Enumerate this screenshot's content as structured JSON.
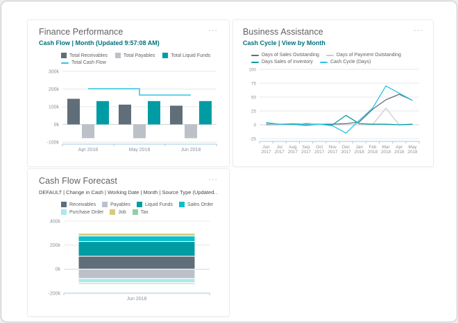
{
  "colors": {
    "accent_subtitle": "#00717b",
    "title": "#606060",
    "menu": "#a9a9a9",
    "legend_text": "#5f5f5f",
    "tick_label": "#8c9196",
    "gridline": "#e7e7e7",
    "zero_line": "#d2d5d8",
    "axis_line": "#9fc9e3",
    "card_border": "#ececec"
  },
  "cards": [
    {
      "key": "finance-performance",
      "title": "Finance Performance",
      "menu_label": "···",
      "subtitle": "Cash Flow | Month (Updated 9:57:08 AM)",
      "legend": [
        {
          "label": "Total Receivables",
          "color": "#5f6e78",
          "shape": "square",
          "row": 0
        },
        {
          "label": "Total Payables",
          "color": "#bcc1c8",
          "shape": "square",
          "row": 0
        },
        {
          "label": "Total Liquid Funds",
          "color": "#009ca4",
          "shape": "square",
          "row": 0
        },
        {
          "label": "Total Cash Flow",
          "color": "#2bc5e3",
          "shape": "line",
          "row": 1
        }
      ]
    },
    {
      "key": "business-assistance",
      "title": "Business Assistance",
      "menu_label": "···",
      "subtitle": "Cash Cycle | View by Month",
      "legend": [
        {
          "label": "Days of Sales Outstanding",
          "color": "#5f6e78",
          "shape": "line",
          "row": 0
        },
        {
          "label": "Days of Payment Outstanding",
          "color": "#c7ccd1",
          "shape": "line",
          "row": 0
        },
        {
          "label": "Days Sales of Inventory",
          "color": "#009ca4",
          "shape": "line",
          "row": 1
        },
        {
          "label": "Cash Cycle (Days)",
          "color": "#2bc5e3",
          "shape": "line",
          "row": 1
        }
      ]
    },
    {
      "key": "cash-flow-forecast",
      "title": "Cash Flow Forecast",
      "menu_label": "···",
      "subtitle": "DEFAULT | Change in Cash | Working Date | Month | Source Type (Updated…",
      "legend": [
        {
          "label": "Receivables",
          "color": "#5f6e78",
          "shape": "square",
          "row": 0
        },
        {
          "label": "Payables",
          "color": "#bcc1c8",
          "shape": "square",
          "row": 0
        },
        {
          "label": "Liquid Funds",
          "color": "#009ca4",
          "shape": "square",
          "row": 0
        },
        {
          "label": "Sales Order",
          "color": "#0bc0cc",
          "shape": "square",
          "row": 0
        },
        {
          "label": "Purchase Order",
          "color": "#abe9ee",
          "shape": "square",
          "row": 1
        },
        {
          "label": "Job",
          "color": "#d8ca7e",
          "shape": "square",
          "row": 1
        },
        {
          "label": "Tax",
          "color": "#8fd0a1",
          "shape": "square",
          "row": 1
        }
      ]
    }
  ],
  "chart_data": [
    {
      "type": "grouped-bar",
      "title": "Cash Flow | Month (Updated 9:57:08 AM)",
      "categories": [
        "Apr 2018",
        "May 2018",
        "Jun 2018"
      ],
      "series": [
        {
          "name": "Total Receivables",
          "color": "#5f6e78",
          "values": [
            145000,
            112000,
            106000
          ]
        },
        {
          "name": "Total Payables",
          "color": "#bcc1c8",
          "values": [
            -78000,
            -78000,
            -78000
          ]
        },
        {
          "name": "Total Liquid Funds",
          "color": "#009ca4",
          "values": [
            132000,
            132000,
            132000
          ]
        }
      ],
      "line_series": [
        {
          "name": "Total Cash Flow",
          "color": "#2bc5e3",
          "step": true,
          "values": [
            202000,
            166000,
            166000
          ]
        }
      ],
      "ylim": [
        -100000,
        300000
      ],
      "yticks": [
        {
          "v": 300000,
          "label": "300k"
        },
        {
          "v": 200000,
          "label": "200k"
        },
        {
          "v": 100000,
          "label": "100k"
        },
        {
          "v": 0,
          "label": "0k"
        },
        {
          "v": -100000,
          "label": "-100k"
        }
      ],
      "xlabel": "",
      "ylabel": "",
      "grid": true,
      "legend_position": "top"
    },
    {
      "type": "line",
      "title": "Cash Cycle | View by Month",
      "categories": [
        "Jun 2017",
        "Jul 2017",
        "Aug 2017",
        "Sep 2017",
        "Oct 2017",
        "Nov 2017",
        "Dec 2017",
        "Jan 2018",
        "Feb 2018",
        "Mar 2018",
        "Apr 2018",
        "May 2018"
      ],
      "series": [
        {
          "name": "Days of Sales Outstanding",
          "color": "#5f6e78",
          "values": [
            0,
            0,
            1,
            2,
            1,
            1,
            2,
            5,
            28,
            45,
            55,
            44
          ]
        },
        {
          "name": "Days of Payment Outstanding",
          "color": "#c7ccd1",
          "values": [
            -1,
            0,
            0,
            3,
            1,
            0,
            0,
            0,
            0,
            30,
            0,
            0
          ]
        },
        {
          "name": "Days Sales of Inventory",
          "color": "#009ca4",
          "values": [
            3,
            1,
            1,
            -1,
            1,
            0,
            17,
            2,
            1,
            1,
            0,
            1
          ]
        },
        {
          "name": "Cash Cycle (Days)",
          "color": "#2bc5e3",
          "values": [
            4,
            1,
            2,
            0,
            1,
            -2,
            -15,
            8,
            30,
            70,
            57,
            44
          ]
        }
      ],
      "ylim": [
        -25,
        100
      ],
      "yticks": [
        {
          "v": 100,
          "label": "100"
        },
        {
          "v": 75,
          "label": "75"
        },
        {
          "v": 50,
          "label": "50"
        },
        {
          "v": 25,
          "label": "25"
        },
        {
          "v": 0,
          "label": "0"
        },
        {
          "v": -25,
          "label": "-25"
        }
      ],
      "xlabel": "",
      "ylabel": "",
      "grid": true,
      "legend_position": "top"
    },
    {
      "type": "stacked-bar",
      "title": "DEFAULT | Change in Cash | Working Date | Month | Source Type",
      "categories": [
        "Jun 2018"
      ],
      "series": [
        {
          "name": "Receivables",
          "color": "#5f6e78",
          "values": [
            108000
          ]
        },
        {
          "name": "Payables",
          "color": "#bcc1c8",
          "values": [
            -78000
          ]
        },
        {
          "name": "Liquid Funds",
          "color": "#009ca4",
          "values": [
            122000
          ]
        },
        {
          "name": "Sales Order",
          "color": "#0bc0cc",
          "values": [
            47000
          ]
        },
        {
          "name": "Purchase Order",
          "color": "#abe9ee",
          "values": [
            -33000
          ]
        },
        {
          "name": "Job",
          "color": "#d8ca7e",
          "values": [
            22000
          ]
        },
        {
          "name": "Tax",
          "color": "#c8ecd9",
          "values": [
            -16000
          ]
        }
      ],
      "ylim": [
        -200000,
        400000
      ],
      "yticks": [
        {
          "v": 400000,
          "label": "400k"
        },
        {
          "v": 200000,
          "label": "200k"
        },
        {
          "v": 0,
          "label": "0k"
        },
        {
          "v": -200000,
          "label": "-200k"
        }
      ],
      "xlabel": "",
      "ylabel": "",
      "grid": true,
      "legend_position": "top"
    }
  ]
}
